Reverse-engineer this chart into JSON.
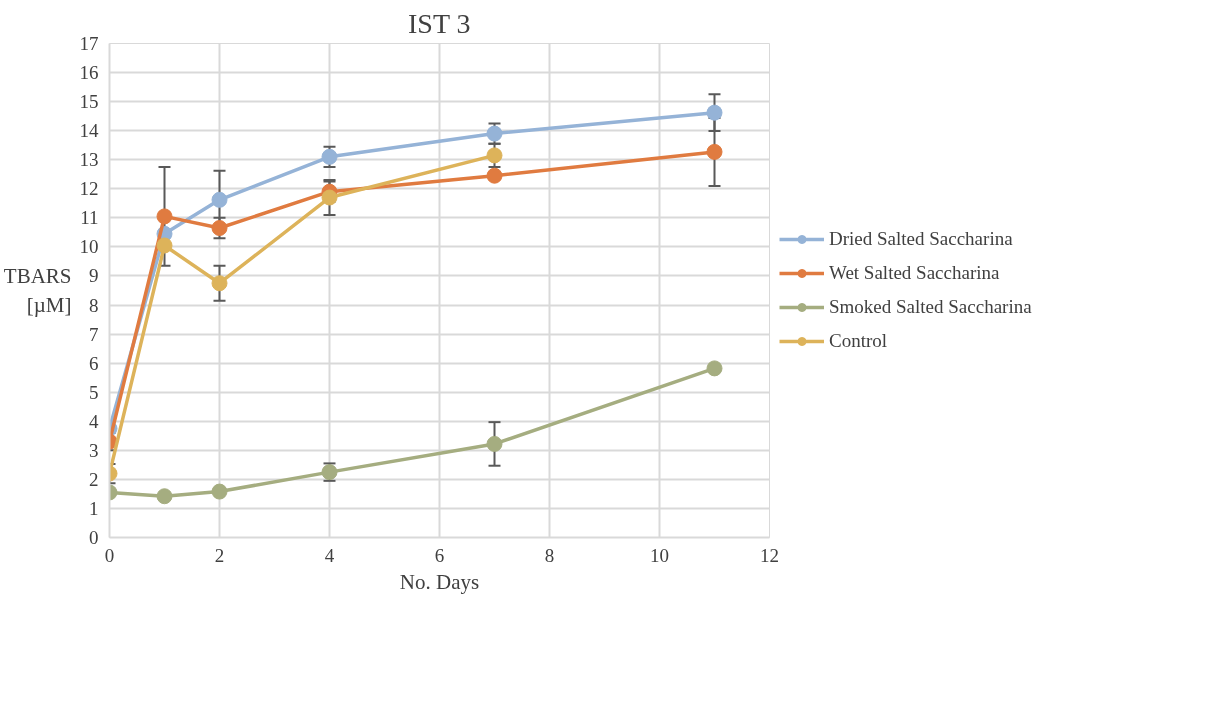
{
  "chart_data": {
    "type": "line",
    "title": "IST 3",
    "xlabel": "No. Days",
    "ylabel": "TBARS\n[µM]",
    "x": [
      0,
      1,
      2,
      4,
      7,
      11
    ],
    "xlim": [
      0,
      12
    ],
    "xticks": [
      0,
      2,
      4,
      6,
      8,
      10,
      12
    ],
    "ylim": [
      0,
      17
    ],
    "yticks": [
      0,
      1,
      2,
      3,
      4,
      5,
      6,
      7,
      8,
      9,
      10,
      11,
      12,
      13,
      14,
      15,
      16,
      17
    ],
    "grid": true,
    "legend": "right",
    "marker": "circle",
    "line_style": "solid",
    "series": [
      {
        "name": "Dried Salted Saccharina",
        "color": "#95b3d7",
        "values": [
          3.75,
          10.45,
          11.62,
          13.1,
          13.9,
          14.62
        ],
        "errors": [
          null,
          null,
          1.0,
          0.35,
          0.35,
          0.63
        ]
      },
      {
        "name": "Wet Salted Saccharina",
        "color": "#e07b40",
        "values": [
          3.3,
          11.05,
          10.65,
          11.9,
          12.45,
          13.27
        ],
        "errors": [
          0.3,
          1.7,
          0.35,
          0.35,
          null,
          1.17
        ]
      },
      {
        "name": "Smoked Salted Saccharina",
        "color": "#a5ad80",
        "values": [
          1.55,
          1.42,
          1.58,
          2.25,
          3.22,
          5.82
        ],
        "errors": [
          null,
          null,
          null,
          0.3,
          0.75,
          null
        ]
      },
      {
        "name": "Control",
        "color": "#ddb35a",
        "values": [
          2.2,
          10.05,
          8.75,
          11.7,
          13.15,
          null
        ],
        "errors": [
          0.33,
          null,
          0.6,
          0.6,
          0.4,
          null
        ]
      }
    ]
  }
}
